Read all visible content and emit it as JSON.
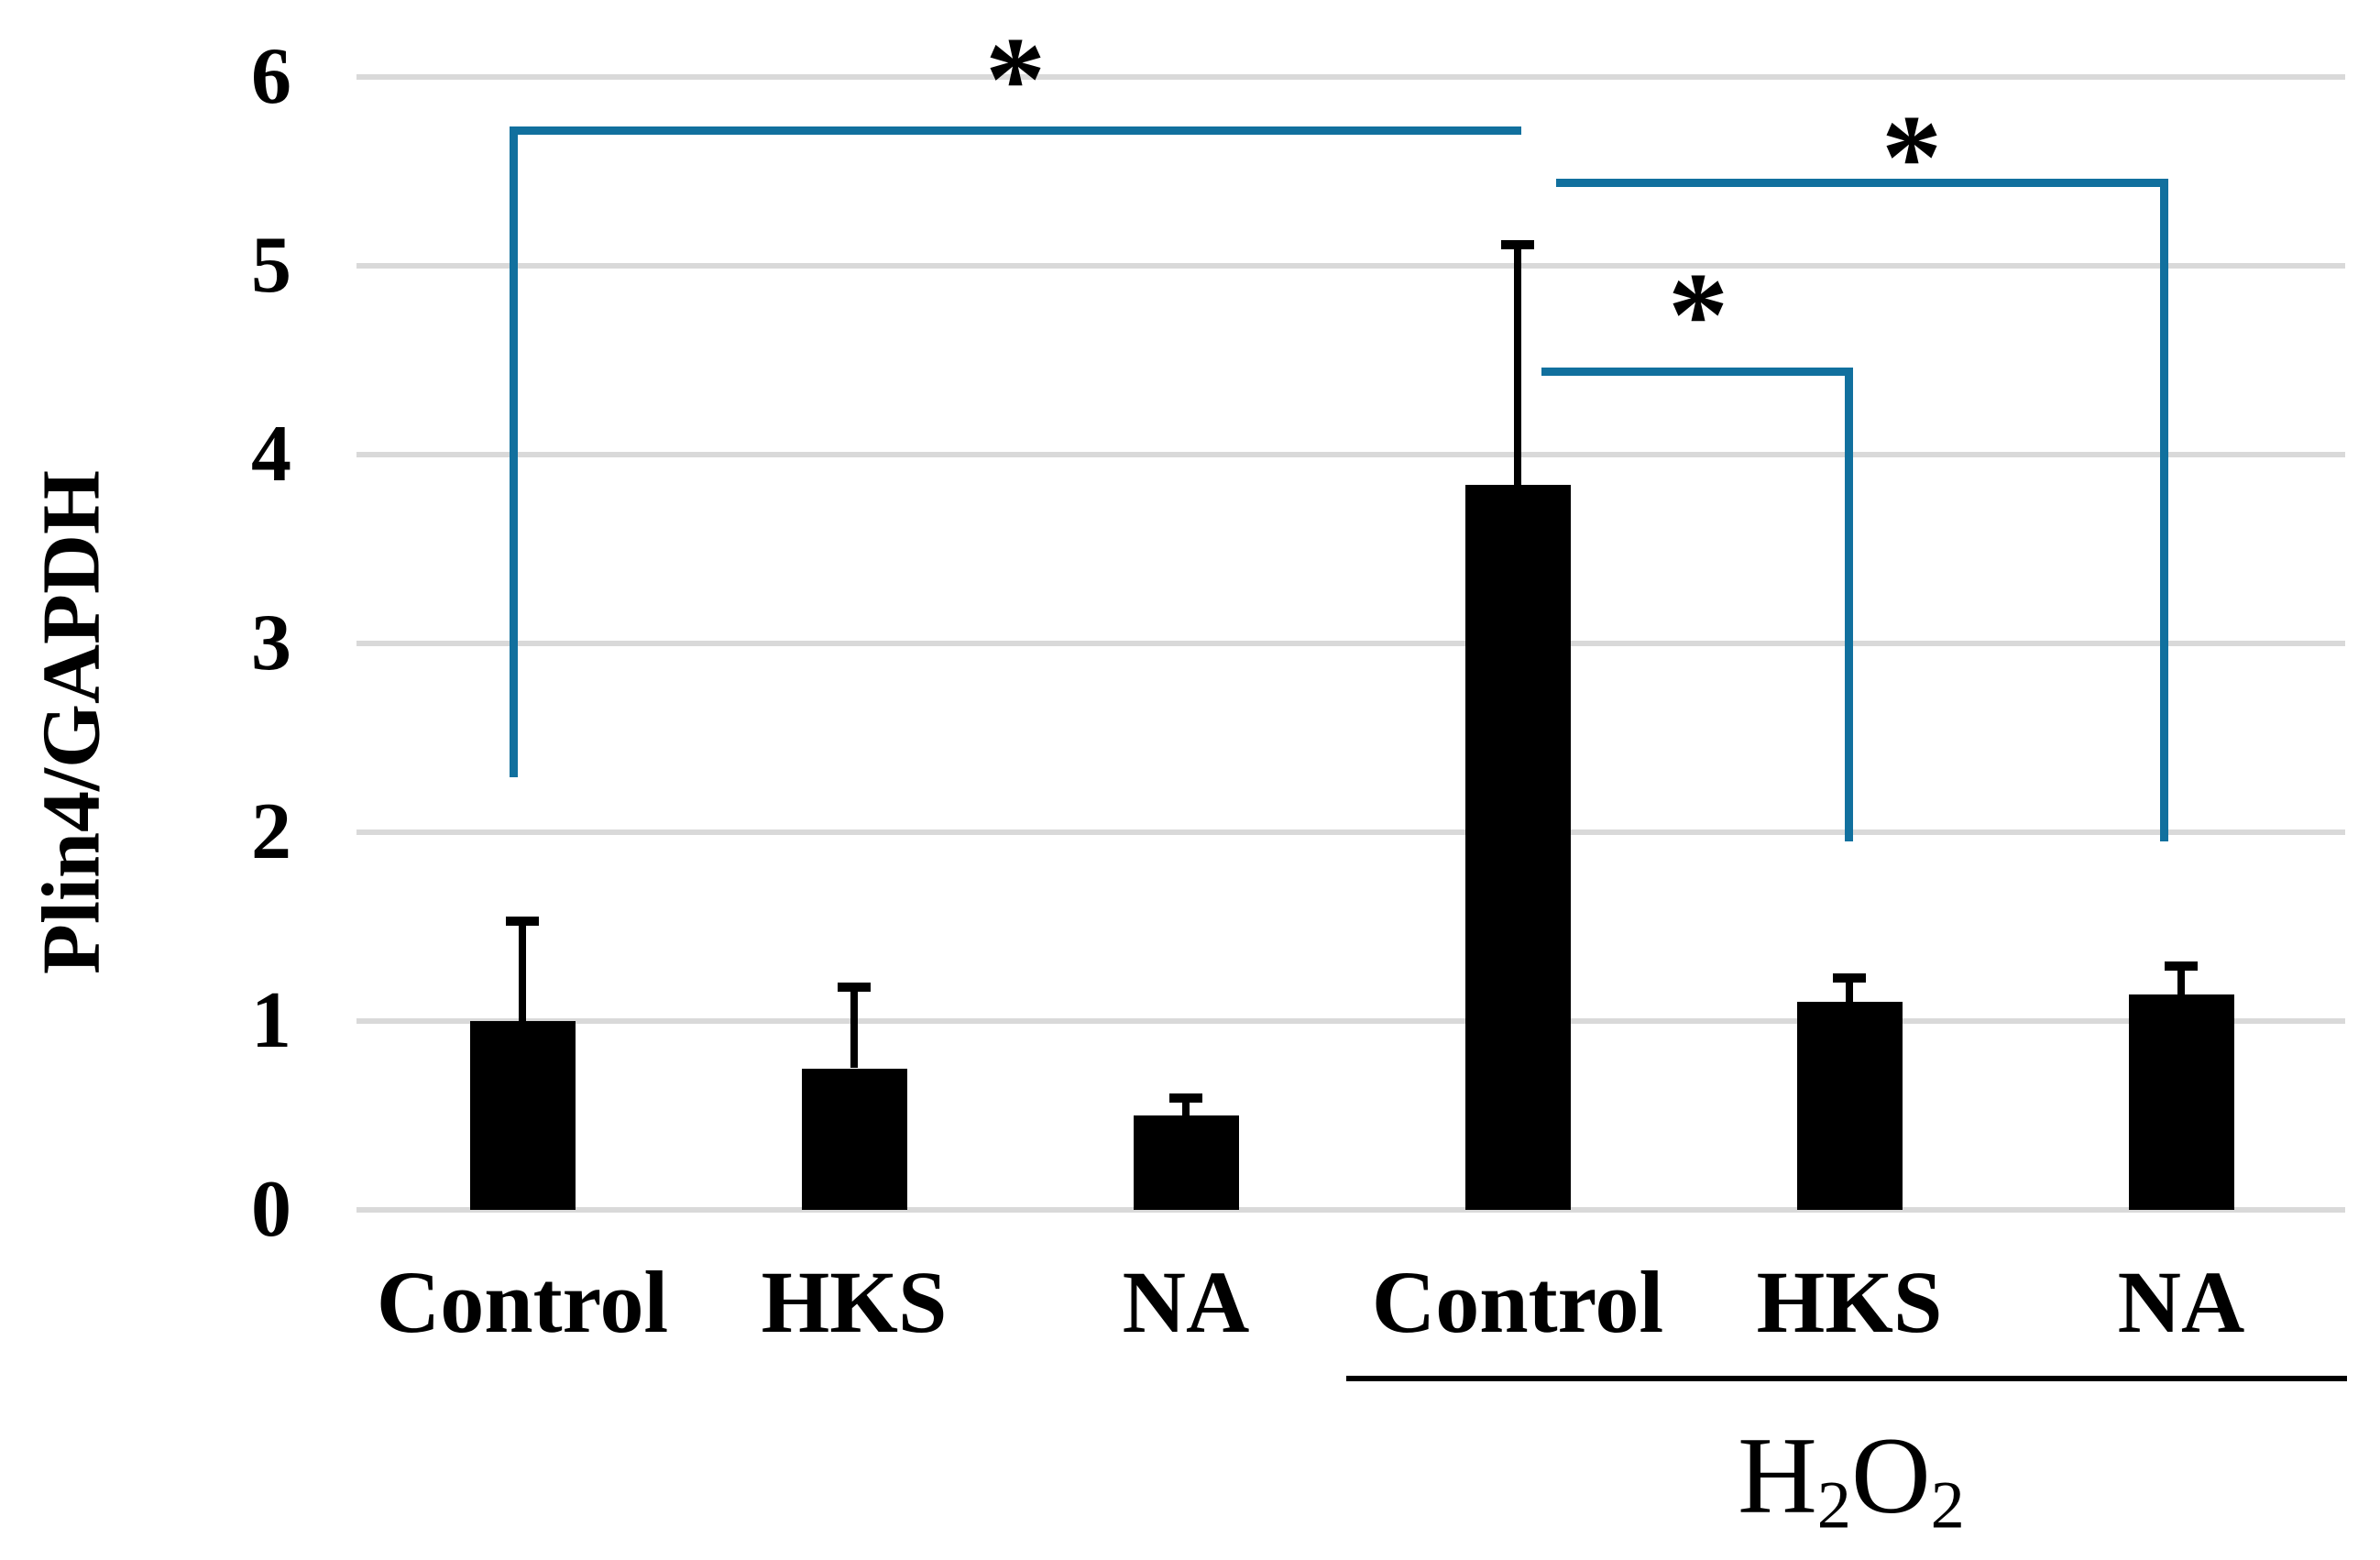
{
  "chart_data": {
    "type": "bar",
    "title": "",
    "xlabel": "",
    "ylabel": "Plin4/GAPDH",
    "ylim": [
      0,
      6
    ],
    "yticks": [
      "0",
      "1",
      "2",
      "3",
      "4",
      "5",
      "6"
    ],
    "grid": true,
    "legend": "none",
    "categories": [
      "Control",
      "HKS",
      "NA",
      "Control",
      "HKS",
      "NA"
    ],
    "values": [
      1.0,
      0.75,
      0.5,
      3.84,
      1.1,
      1.14
    ],
    "errors_plus": [
      0.53,
      0.43,
      0.09,
      1.27,
      0.13,
      0.15
    ],
    "bar_color": "#000000",
    "gridline_color": "#d9d9d9",
    "bracket_color": "#11709e",
    "group": {
      "label": "H2O2",
      "label_parts": [
        {
          "text": "H",
          "sub": false
        },
        {
          "text": "2",
          "sub": true
        },
        {
          "text": "O",
          "sub": false
        },
        {
          "text": "2",
          "sub": true
        }
      ],
      "members": [
        "Control",
        "HKS",
        "NA"
      ],
      "start_index": 3,
      "end_index": 5
    },
    "significance": [
      {
        "label": "*",
        "between": [
          "Control",
          "Control H2O2"
        ],
        "level": 5.72
      },
      {
        "label": "*",
        "between": [
          "Control H2O2",
          "NA H2O2"
        ],
        "level": 5.44
      },
      {
        "label": "*",
        "between": [
          "Control H2O2",
          "HKS H2O2"
        ],
        "level": 4.44
      }
    ]
  }
}
